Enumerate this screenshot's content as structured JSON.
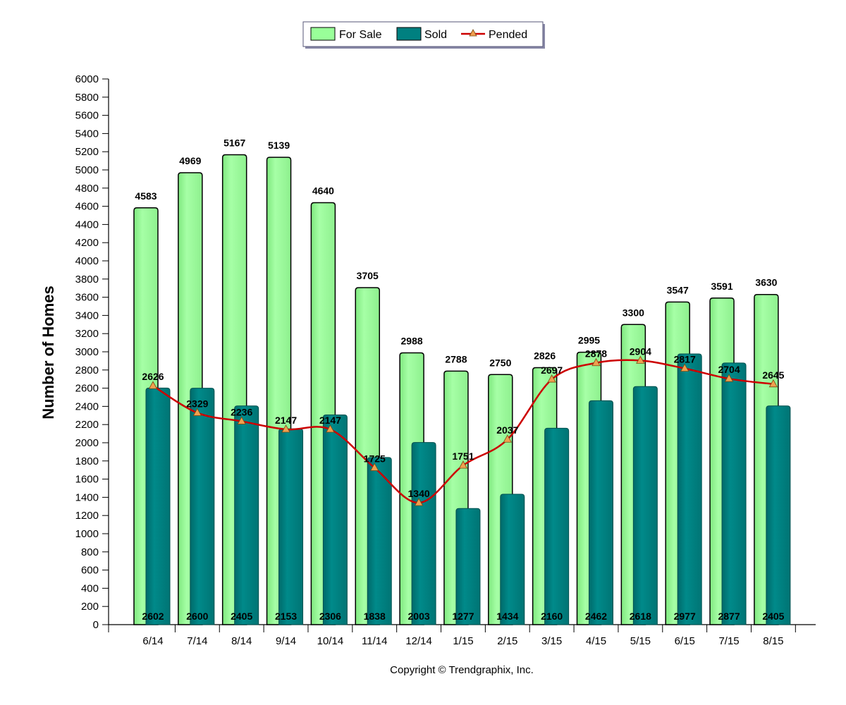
{
  "colors": {
    "for_sale": "#99ff99",
    "sold": "#008080",
    "pended_line": "#cc0000",
    "pended_marker": "#f0a050"
  },
  "legend": {
    "items": [
      "For Sale",
      "Sold",
      "Pended"
    ]
  },
  "copyright": "Copyright © Trendgraphix, Inc.",
  "chart_data": {
    "type": "bar",
    "ylabel": "Number of Homes",
    "xlabel": "",
    "ylim": [
      0,
      6000
    ],
    "ytick_step": 200,
    "legend_position": "top-center",
    "categories": [
      "6/14",
      "7/14",
      "8/14",
      "9/14",
      "10/14",
      "11/14",
      "12/14",
      "1/15",
      "2/15",
      "3/15",
      "4/15",
      "5/15",
      "6/15",
      "7/15",
      "8/15"
    ],
    "series": [
      {
        "name": "For Sale",
        "type": "bar",
        "values": [
          4583,
          4969,
          5167,
          5139,
          4640,
          3705,
          2988,
          2788,
          2750,
          2826,
          2995,
          3300,
          3547,
          3591,
          3630
        ]
      },
      {
        "name": "Sold",
        "type": "bar",
        "values": [
          2602,
          2600,
          2405,
          2153,
          2306,
          1838,
          2003,
          1277,
          1434,
          2160,
          2462,
          2618,
          2977,
          2877,
          2405
        ]
      },
      {
        "name": "Pended",
        "type": "line",
        "values": [
          2626,
          2329,
          2236,
          2147,
          2147,
          1725,
          1340,
          1751,
          2037,
          2697,
          2878,
          2904,
          2817,
          2704,
          2645
        ]
      }
    ]
  }
}
